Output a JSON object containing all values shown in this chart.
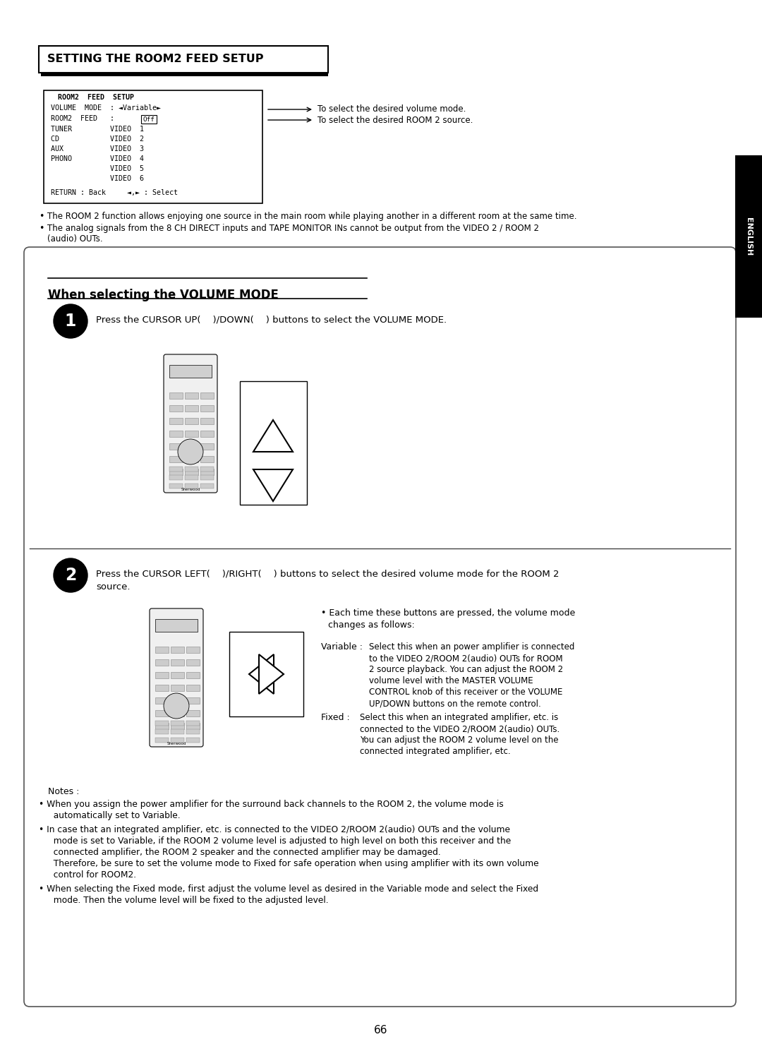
{
  "bg_color": "#ffffff",
  "title": "SETTING THE ROOM2 FEED SETUP",
  "page_number": "66",
  "english_tab": "ENGLISH",
  "screen_title": "ROOM2  FEED  SETUP",
  "screen_vol_mode": "VOLUME  MODE  : ◄Variable►",
  "screen_room2_feed": "ROOM2  FEED   :    Off",
  "screen_items": [
    "TUNER         VIDEO  1",
    "CD            VIDEO  2",
    "AUX           VIDEO  3",
    "PHONO         VIDEO  4",
    "              VIDEO  5",
    "              VIDEO  6"
  ],
  "screen_return": "RETURN : Back     ◄,► : Select",
  "arrow_text1": "To select the desired volume mode.",
  "arrow_text2": "To select the desired ROOM 2 source.",
  "bullet1": "The ROOM 2 function allows enjoying one source in the main room while playing another in a different room at the same time.",
  "bullet2_line1": "The analog signals from the 8 CH DIRECT inputs and TAPE MONITOR INs cannot be output from the VIDEO 2 / ROOM 2",
  "bullet2_line2": "(audio) OUTs.",
  "section_title": "When selecting the VOLUME MODE",
  "step1_text": "Press the CURSOR UP(    )/DOWN(    ) buttons to select the VOLUME MODE.",
  "step2_line1": "Press the CURSOR LEFT(    )/RIGHT(    ) buttons to select the desired volume mode for the ROOM 2",
  "step2_line2": "source.",
  "bullet_each_line1": "• Each time these buttons are pressed, the volume mode",
  "bullet_each_line2": "  changes as follows:",
  "var_label": "Variable :",
  "var_lines": [
    "Select this when an power amplifier is connected",
    "to the VIDEO 2/ROOM 2(audio) OUTs for ROOM",
    "2 source playback. You can adjust the ROOM 2",
    "volume level with the MASTER VOLUME",
    "CONTROL knob of this receiver or the VOLUME",
    "UP/DOWN buttons on the remote control."
  ],
  "fix_label": "Fixed :",
  "fix_lines": [
    "Select this when an integrated amplifier, etc. is",
    "connected to the VIDEO 2/ROOM 2(audio) OUTs.",
    "You can adjust the ROOM 2 volume level on the",
    "connected integrated amplifier, etc."
  ],
  "notes_label": "Notes :",
  "note1_lines": [
    "• When you assign the power amplifier for the surround back channels to the ROOM 2, the volume mode is",
    "  automatically set to Variable."
  ],
  "note2_lines": [
    "• In case that an integrated amplifier, etc. is connected to the VIDEO 2/ROOM 2(audio) OUTs and the volume",
    "  mode is set to Variable, if the ROOM 2 volume level is adjusted to high level on both this receiver and the",
    "  connected amplifier, the ROOM 2 speaker and the connected amplifier may be damaged.",
    "  Therefore, be sure to set the volume mode to Fixed for safe operation when using amplifier with its own volume",
    "  control for ROOM2."
  ],
  "note3_lines": [
    "• When selecting the Fixed mode, first adjust the volume level as desired in the Variable mode and select the Fixed",
    "  mode. Then the volume level will be fixed to the adjusted level."
  ]
}
